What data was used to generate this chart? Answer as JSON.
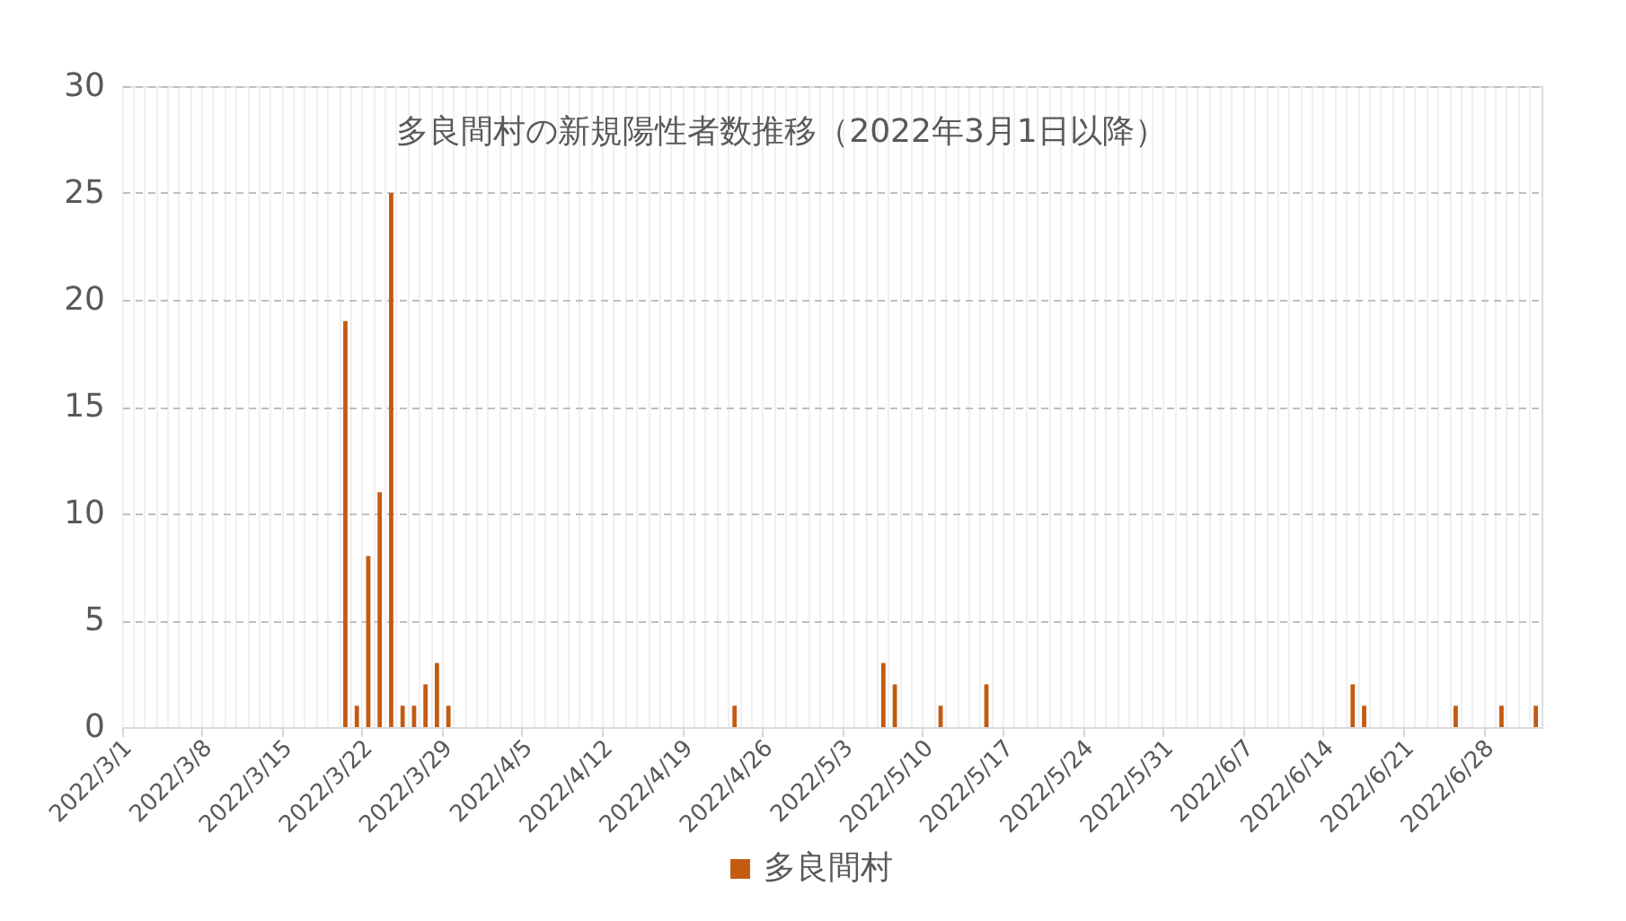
{
  "chart_data": {
    "type": "bar",
    "title": "多良間村の新規陽性者数推移（2022年3月1日以降）",
    "categories": [
      "2022/3/1",
      null,
      null,
      null,
      null,
      null,
      null,
      "2022/3/8",
      null,
      null,
      null,
      null,
      null,
      null,
      "2022/3/15",
      null,
      null,
      null,
      null,
      null,
      null,
      "2022/3/22",
      null,
      null,
      null,
      null,
      null,
      null,
      "2022/3/29",
      null,
      null,
      null,
      null,
      null,
      null,
      "2022/4/5",
      null,
      null,
      null,
      null,
      null,
      null,
      "2022/4/12",
      null,
      null,
      null,
      null,
      null,
      null,
      "2022/4/19",
      null,
      null,
      null,
      null,
      null,
      null,
      "2022/4/26",
      null,
      null,
      null,
      null,
      null,
      null,
      "2022/5/3",
      null,
      null,
      null,
      null,
      null,
      null,
      "2022/5/10",
      null,
      null,
      null,
      null,
      null,
      null,
      "2022/5/17",
      null,
      null,
      null,
      null,
      null,
      null,
      "2022/5/24",
      null,
      null,
      null,
      null,
      null,
      null,
      "2022/5/31",
      null,
      null,
      null,
      null,
      null,
      null,
      "2022/6/7",
      null,
      null,
      null,
      null,
      null,
      null,
      "2022/6/14",
      null,
      null,
      null,
      null,
      null,
      null,
      "2022/6/21",
      null,
      null,
      null,
      null,
      null,
      null,
      "2022/6/28",
      null,
      null,
      null,
      null
    ],
    "series": [
      {
        "name": "多良間村",
        "color": "#c55a11",
        "values": [
          0,
          0,
          0,
          0,
          0,
          0,
          0,
          0,
          0,
          0,
          0,
          0,
          0,
          0,
          0,
          0,
          0,
          0,
          0,
          19,
          1,
          8,
          11,
          25,
          1,
          1,
          2,
          3,
          1,
          0,
          0,
          0,
          0,
          0,
          0,
          0,
          0,
          0,
          0,
          0,
          0,
          0,
          0,
          0,
          0,
          0,
          0,
          0,
          0,
          0,
          0,
          0,
          0,
          1,
          0,
          0,
          0,
          0,
          0,
          0,
          0,
          0,
          0,
          0,
          0,
          0,
          3,
          2,
          0,
          0,
          0,
          1,
          0,
          0,
          0,
          2,
          0,
          0,
          0,
          0,
          0,
          0,
          0,
          0,
          0,
          0,
          0,
          0,
          0,
          0,
          0,
          0,
          0,
          0,
          0,
          0,
          0,
          0,
          0,
          0,
          0,
          0,
          0,
          0,
          0,
          0,
          0,
          2,
          1,
          0,
          0,
          0,
          0,
          0,
          0,
          0,
          1,
          0,
          0,
          0,
          1,
          0,
          0,
          1
        ]
      }
    ],
    "ylim": [
      0,
      30
    ],
    "yticks": [
      0,
      5,
      10,
      15,
      20,
      25,
      30
    ],
    "grid": true,
    "legend": "bottom"
  }
}
